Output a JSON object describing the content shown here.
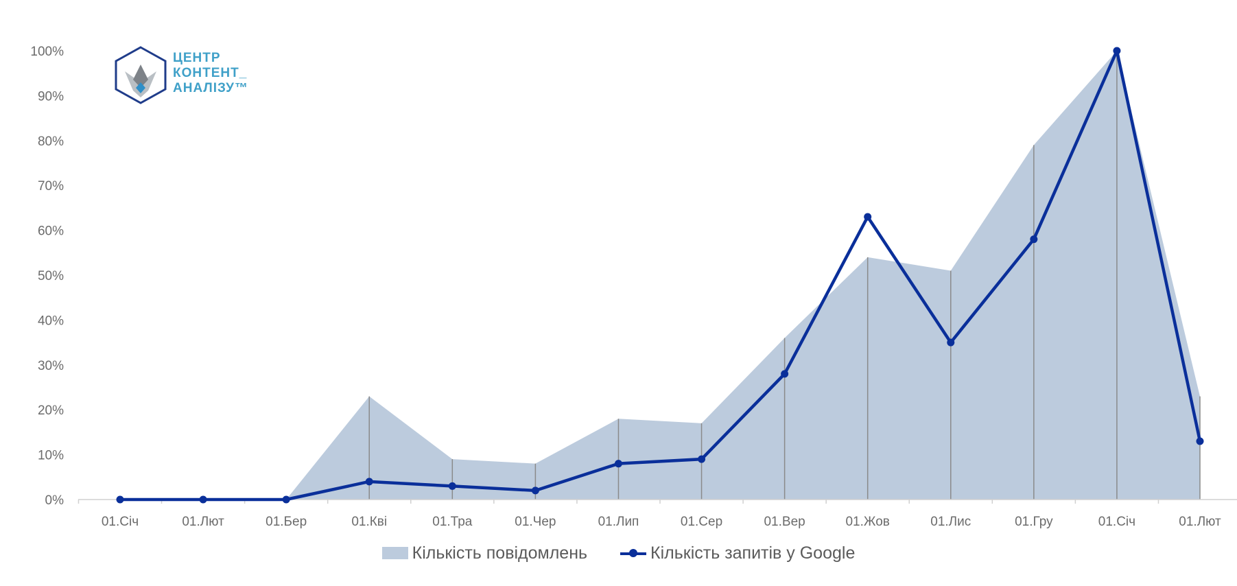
{
  "chart_data": {
    "type": "area",
    "x": [
      "01.Січ",
      "01.Лют",
      "01.Бер",
      "01.Кві",
      "01.Тра",
      "01.Чер",
      "01.Лип",
      "01.Сер",
      "01.Вер",
      "01.Жов",
      "01.Лис",
      "01.Гру",
      "01.Січ",
      "01.Лют"
    ],
    "ylim": [
      0,
      100
    ],
    "yticks": [
      "0%",
      "10%",
      "20%",
      "30%",
      "40%",
      "50%",
      "60%",
      "70%",
      "80%",
      "90%",
      "100%"
    ],
    "series": [
      {
        "name": "Кількість повідомлень",
        "type": "area",
        "color": "#bccbdd",
        "values": [
          0,
          0,
          0,
          23,
          9,
          8,
          18,
          17,
          36,
          54,
          51,
          79,
          100,
          23
        ]
      },
      {
        "name": "Кількість запитів у Google",
        "type": "line",
        "color": "#0a2f9a",
        "values": [
          0,
          0,
          0,
          4,
          3,
          2,
          8,
          9,
          28,
          63,
          35,
          58,
          100,
          13
        ]
      }
    ],
    "legend": "bottom"
  },
  "logo": {
    "lines": [
      "ЦЕНТР",
      "КОНТЕНТ_",
      "АНАЛІЗУ™"
    ],
    "colors": {
      "text": "#3fa0c8",
      "hex": "#1f3c8a"
    }
  }
}
